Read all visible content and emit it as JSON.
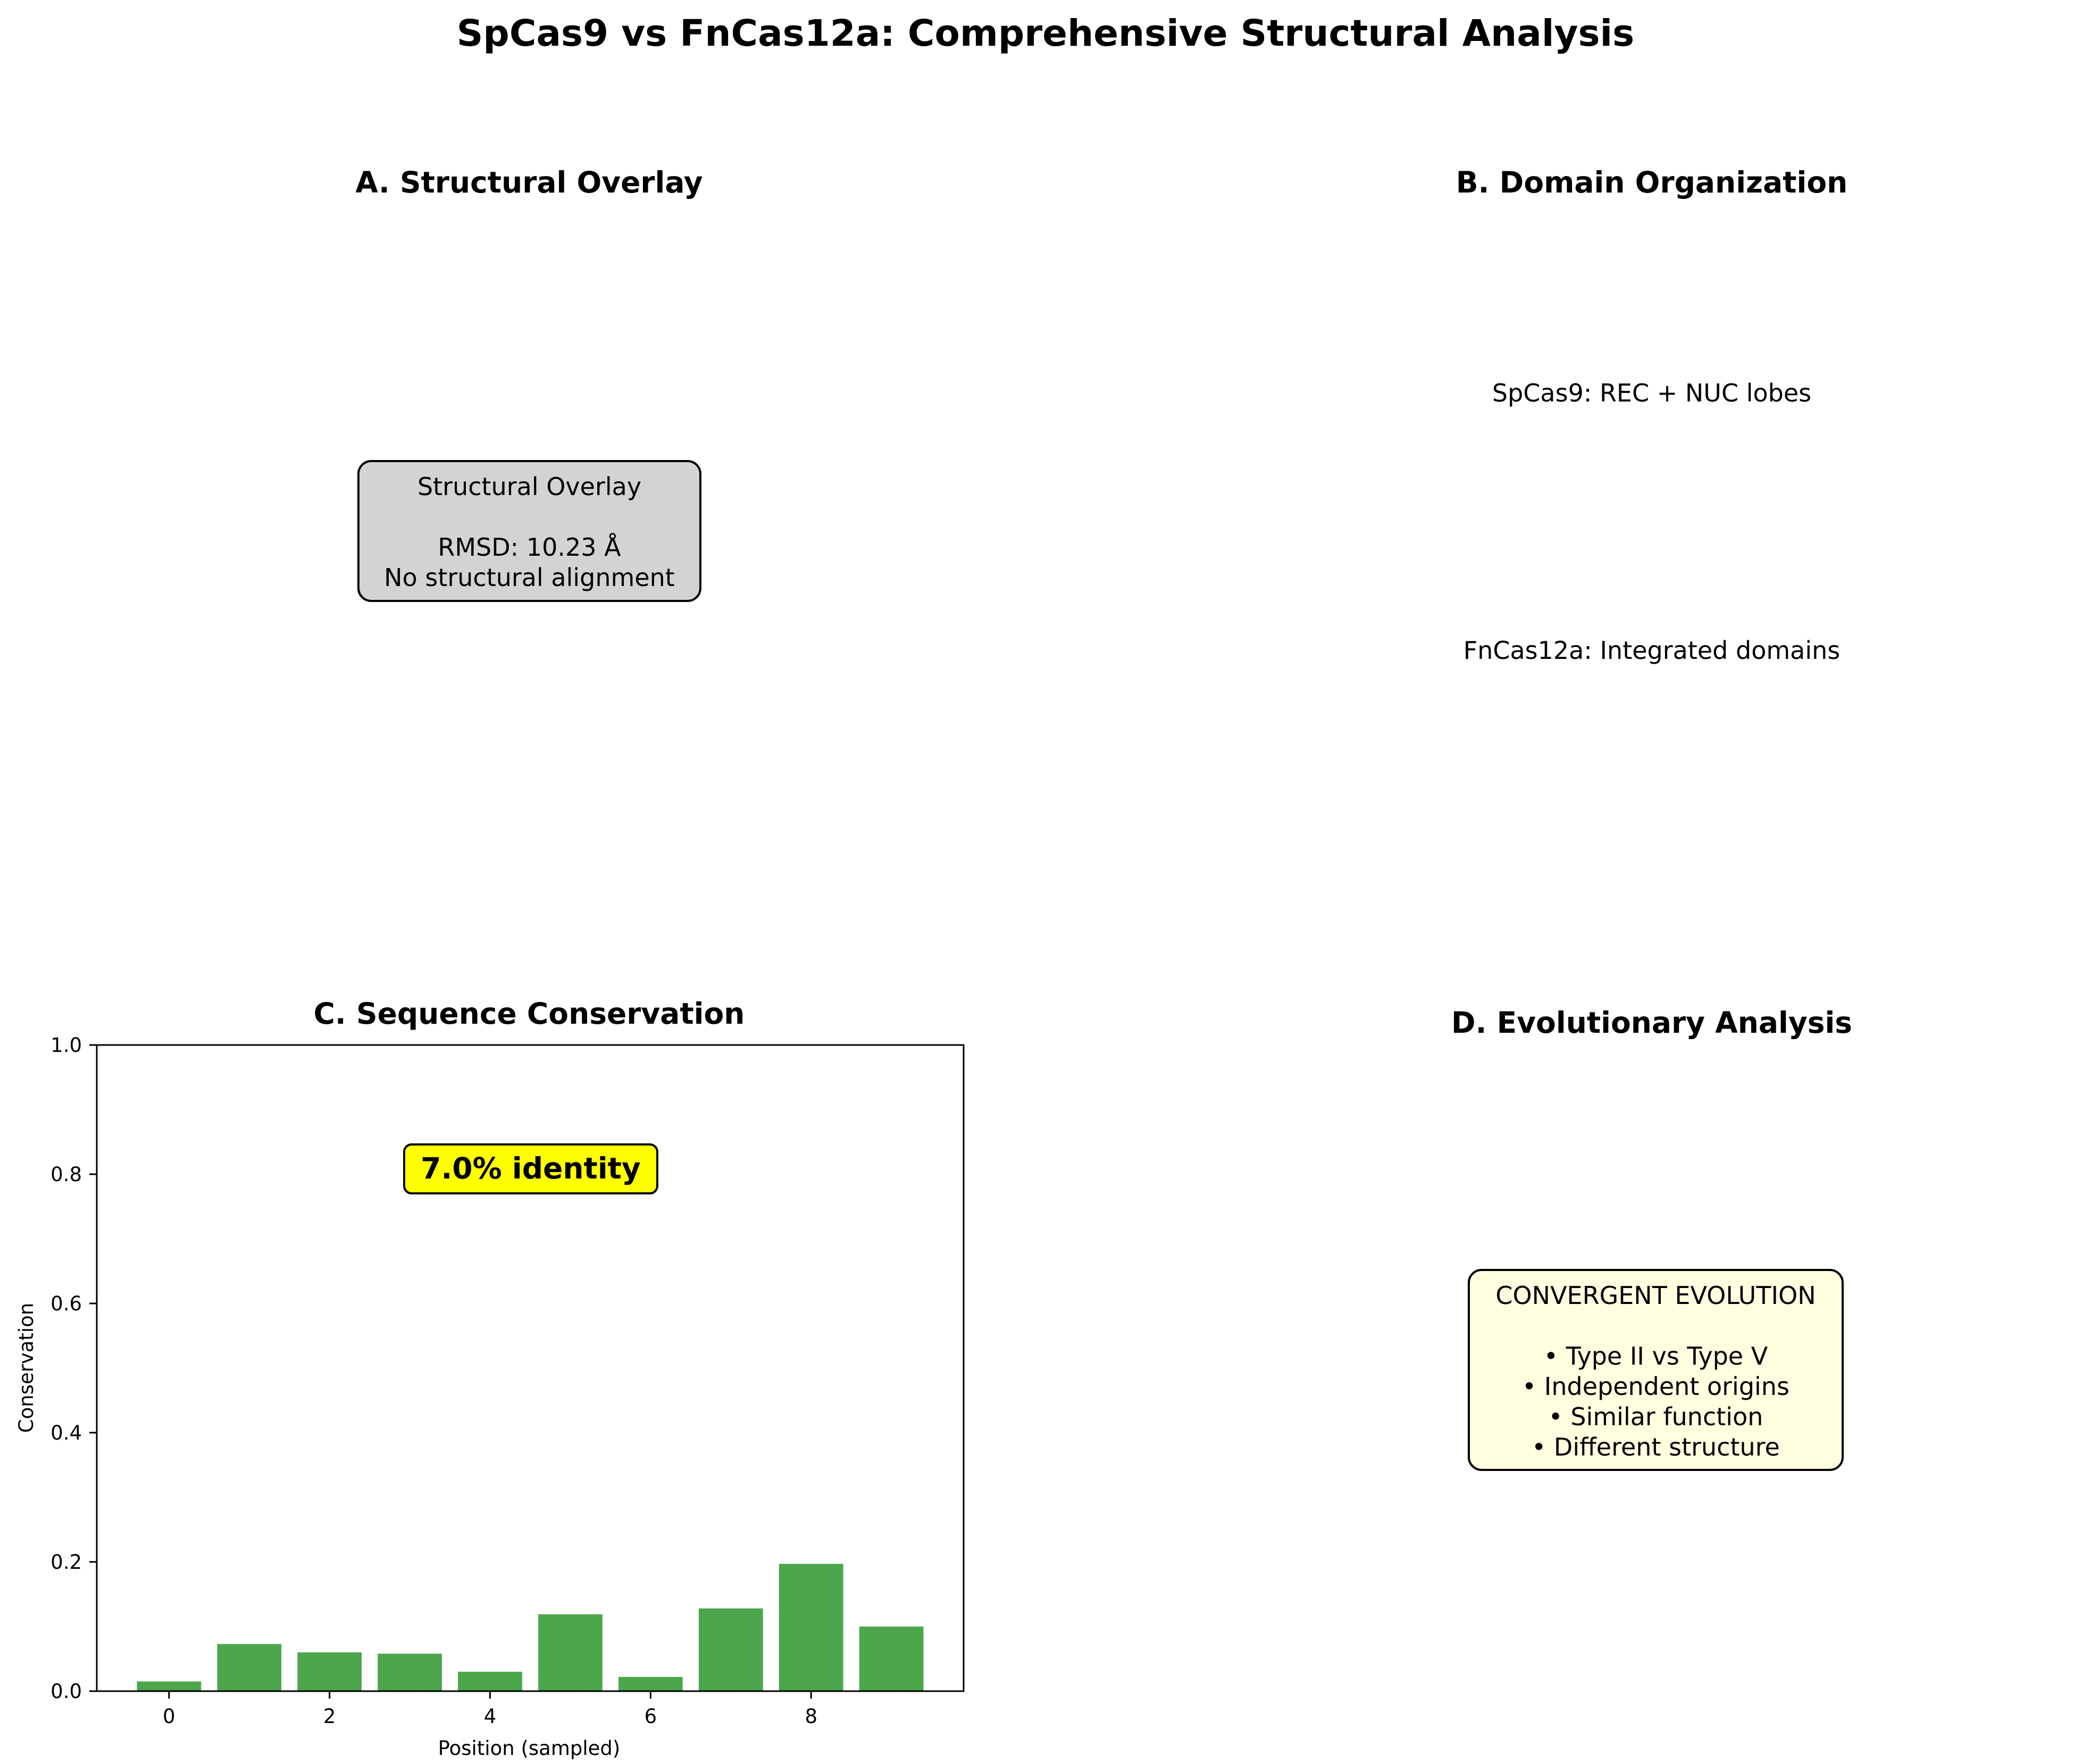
{
  "suptitle": "SpCas9 vs FnCas12a: Comprehensive Structural Analysis",
  "panel_a": {
    "title": "A. Structural Overlay",
    "box_title": "Structural Overlay",
    "rmsd": "RMSD: 10.23 Å",
    "note": "No structural alignment",
    "box_color": "#d3d3d3"
  },
  "panel_b": {
    "title": "B. Domain Organization",
    "line1": "SpCas9: REC + NUC lobes",
    "line2": "FnCas12a: Integrated domains"
  },
  "panel_c": {
    "title": "C. Sequence Conservation",
    "annotation": "7.0% identity",
    "annotation_color": "#ffff00"
  },
  "panel_d": {
    "title": "D. Evolutionary Analysis",
    "box_title": "CONVERGENT EVOLUTION",
    "bullets": [
      "• Type II vs Type V",
      "• Independent origins",
      "• Similar function",
      "• Different structure"
    ],
    "box_color": "#ffffe0"
  },
  "chart_data": {
    "type": "bar",
    "title": "C. Sequence Conservation",
    "xlabel": "Position (sampled)",
    "ylabel": "Conservation",
    "x": [
      0,
      1,
      2,
      3,
      4,
      5,
      6,
      7,
      8,
      9
    ],
    "values": [
      0.015,
      0.073,
      0.06,
      0.058,
      0.03,
      0.119,
      0.022,
      0.128,
      0.197,
      0.1
    ],
    "xlim": [
      -0.9,
      9.9
    ],
    "ylim": [
      0,
      1.0
    ],
    "xticks": [
      0,
      2,
      4,
      6,
      8
    ],
    "yticks": [
      "0.0",
      "0.2",
      "0.4",
      "0.6",
      "0.8",
      "1.0"
    ],
    "bar_color": "#4ca64c",
    "grid": false,
    "legend": false
  }
}
